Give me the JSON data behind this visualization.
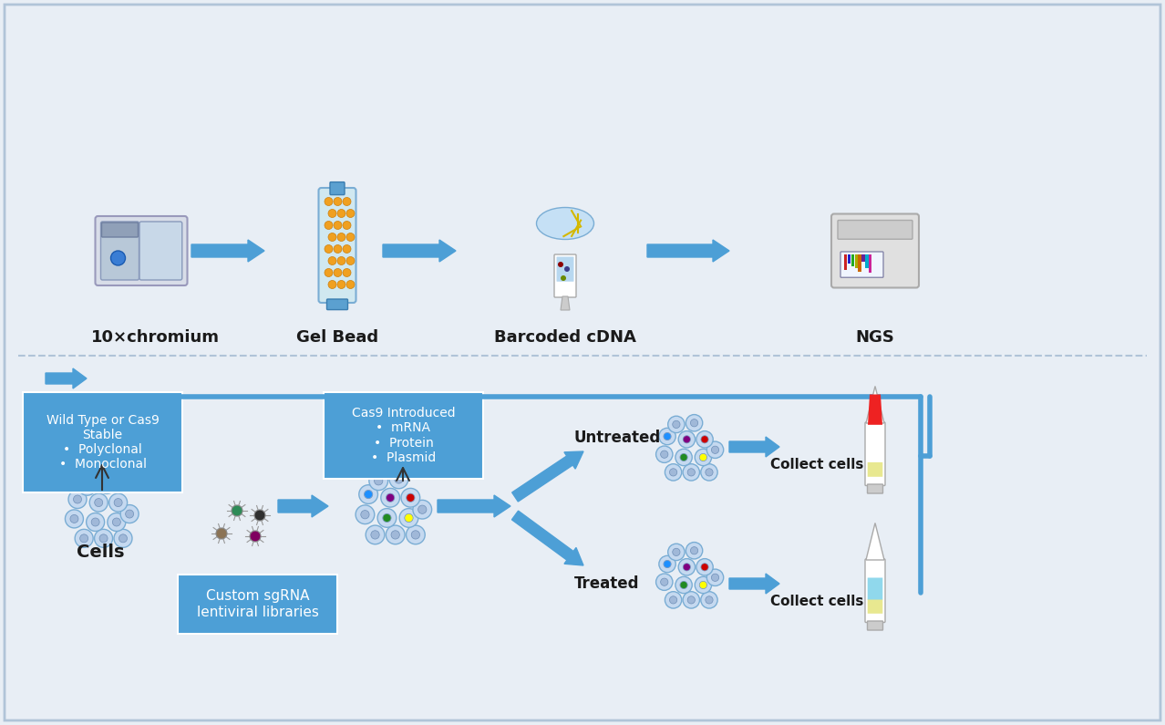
{
  "bg_color": "#e8eef5",
  "box_color": "#4d9fd6",
  "box_text_color": "white",
  "arrow_color": "#4d9fd6",
  "dark_text_color": "#1a1a2e",
  "title_color": "#1a1a1a",
  "cell_fill": "#c5d9f0",
  "cell_outline": "#7aadd4",
  "labels": {
    "cells": "Cells",
    "sgrna_box": "Custom sgRNA\nlentiviral libraries",
    "wildtype_box": "Wild Type or Cas9\nStable\n•  Polyclonal\n•  Monoclonal",
    "cas9_box": "Cas9 Introduced\n•  mRNA\n•  Protein\n•  Plasmid",
    "treated": "Treated",
    "untreated": "Untreated",
    "collect_cells_top": "Collect cells",
    "collect_cells_bottom": "Collect cells",
    "chromium": "10×chromium",
    "gel_bead": "Gel Bead",
    "barcoded_cdna": "Barcoded cDNA",
    "ngs": "NGS"
  },
  "dot_colors_main": [
    "#228b22",
    "#ffff00",
    "#1e90ff",
    "#800080",
    "#cc0000"
  ],
  "dot_colors_treated": [
    "#228b22",
    "#ffff00",
    "#1e90ff",
    "#800080",
    "#cc0000"
  ],
  "dot_colors_untreated": [
    "#228b22",
    "#ffff00",
    "#1e90ff",
    "#800080",
    "#cc0000"
  ],
  "virus_colors": [
    "#8b7355",
    "#800060",
    "#2e8b57",
    "#2f2f2f"
  ]
}
